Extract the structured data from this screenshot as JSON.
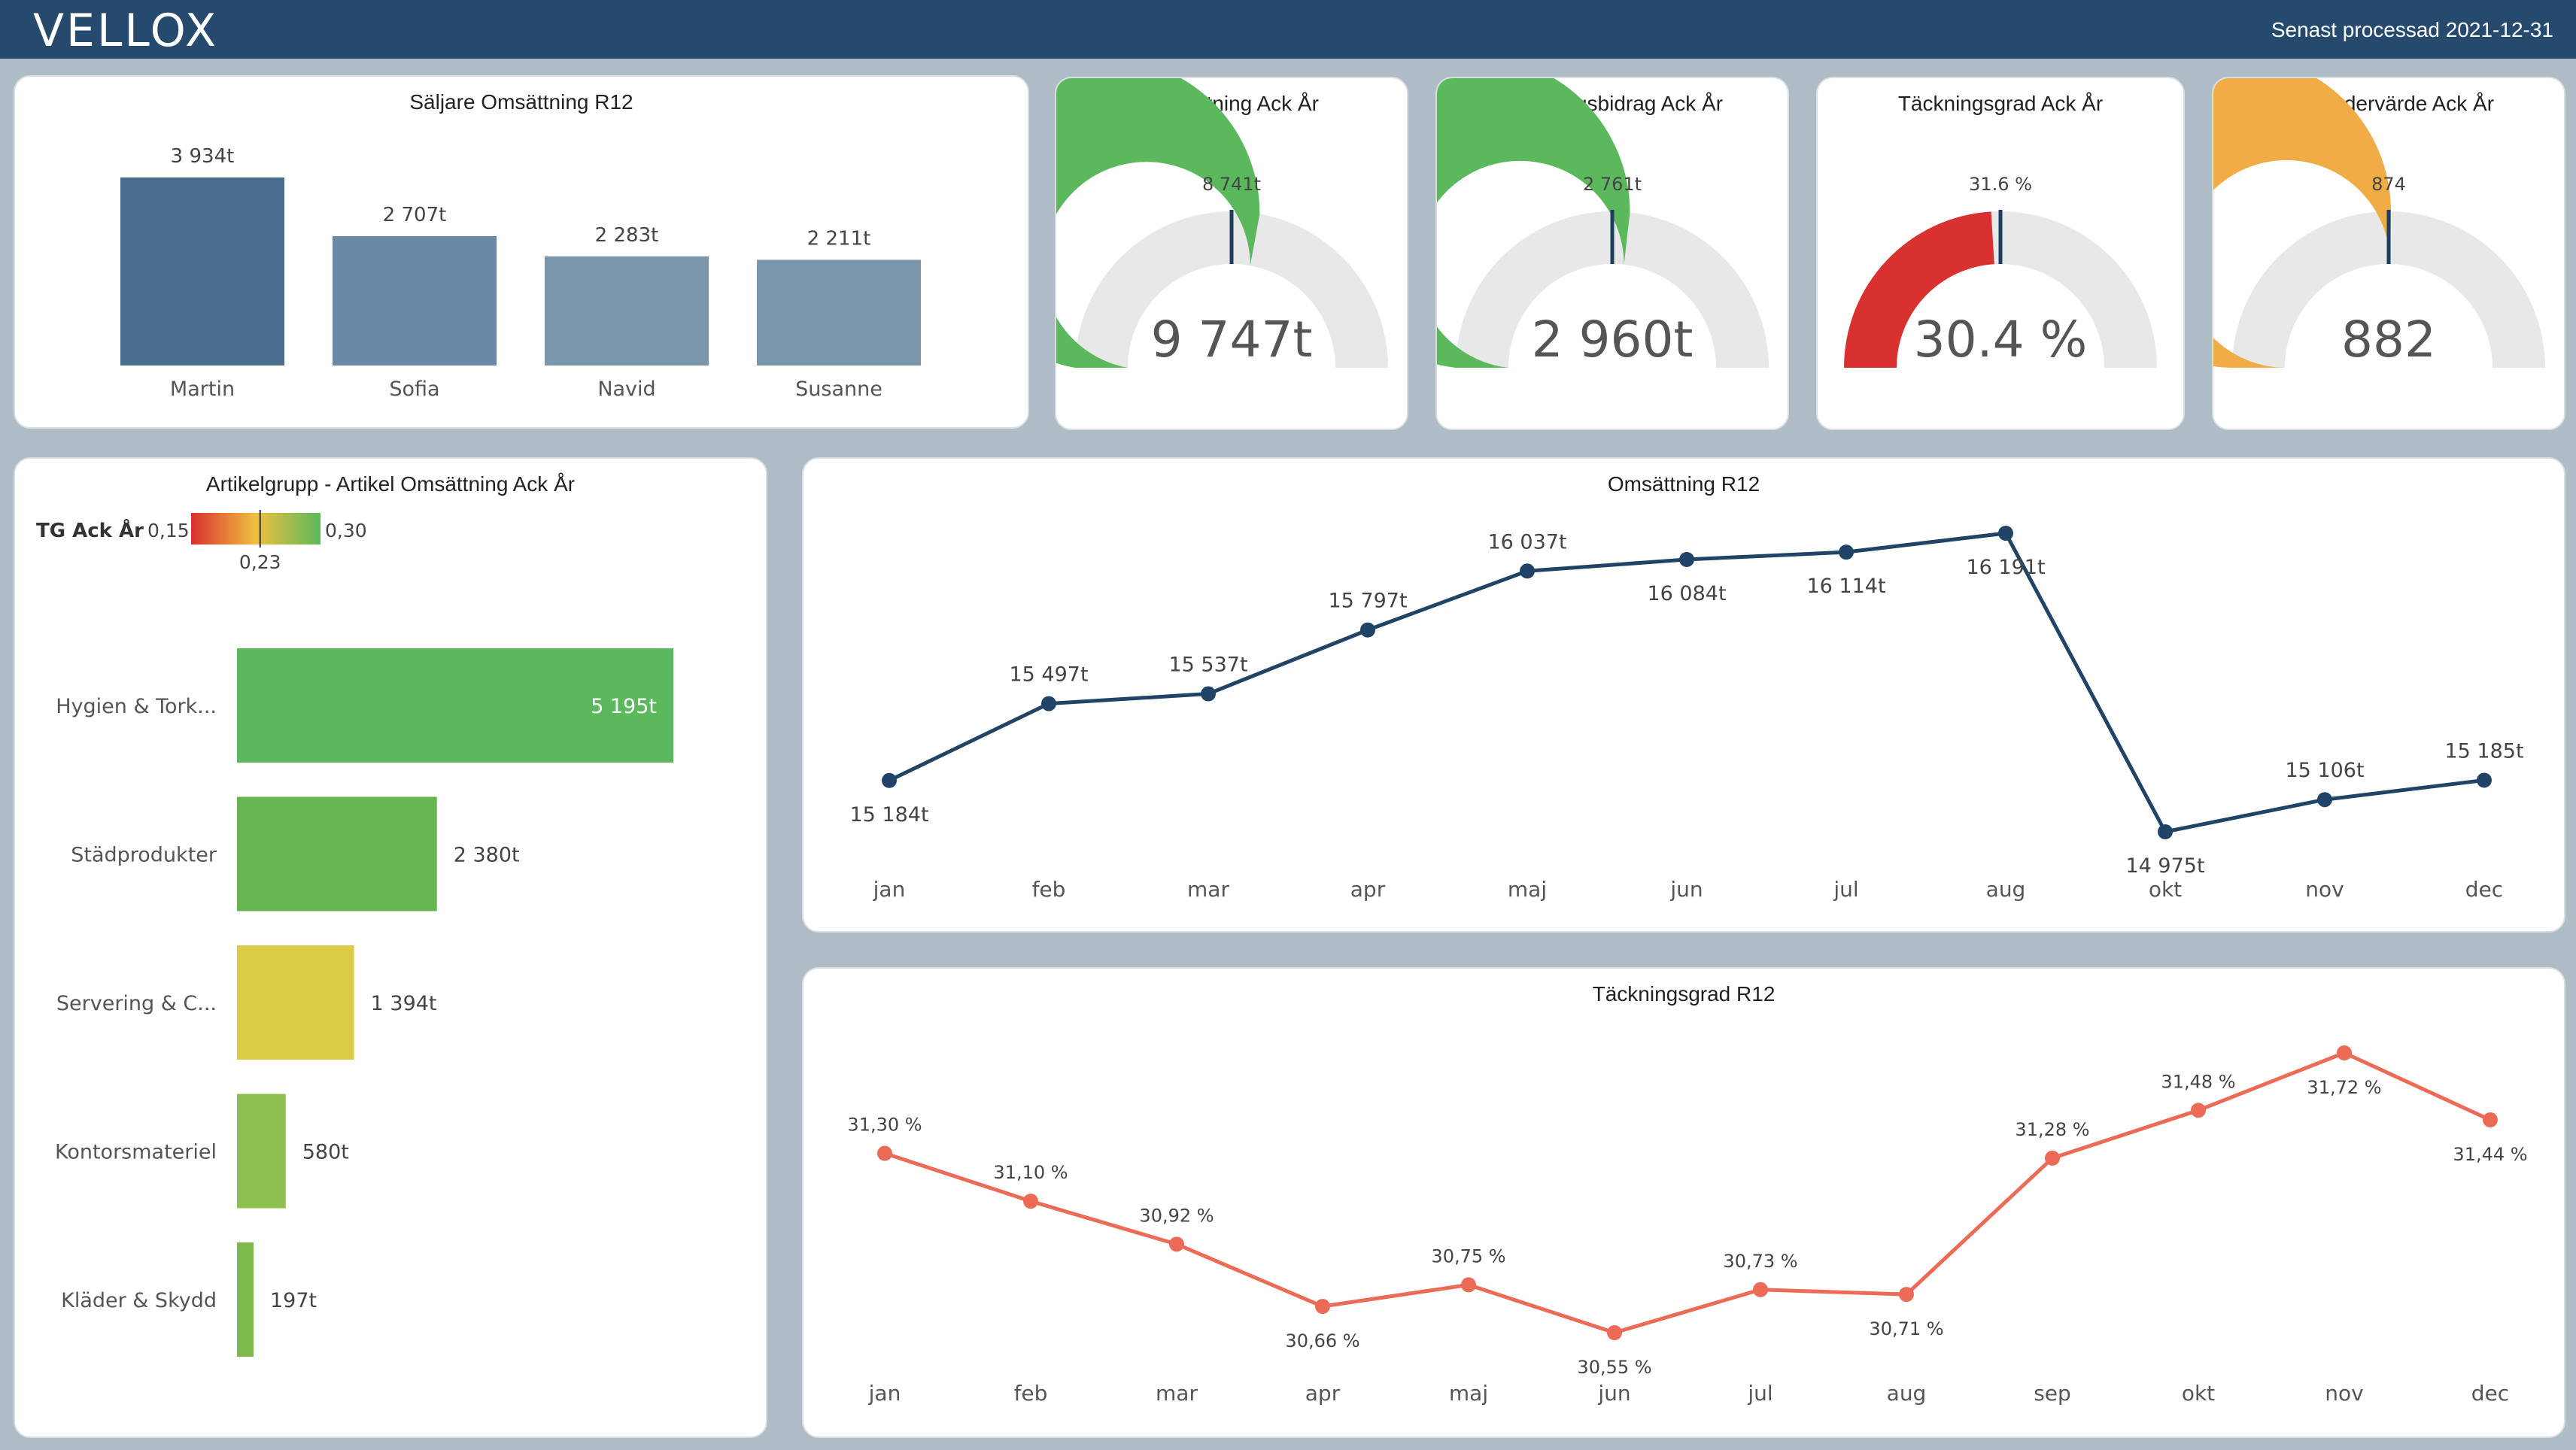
{
  "header": {
    "logo": "VELLOX",
    "processed": "Senast processad 2021-12-31"
  },
  "salesperson": {
    "title": "Säljare  Omsättning R12",
    "chart_data": {
      "type": "bar",
      "categories": [
        "Martin",
        "Sofia",
        "Navid",
        "Susanne"
      ],
      "values": [
        3934,
        2707,
        2283,
        2211
      ],
      "value_labels": [
        "3 934t",
        "2 707t",
        "2 283t",
        "2 211t"
      ],
      "colors": [
        "#4a6f8e",
        "#6a89a6",
        "#7b96ab",
        "#7b96ab"
      ]
    }
  },
  "gauges": [
    {
      "title": "Omsättning Ack År",
      "value_label": "9 747t",
      "target_label": "8 741t",
      "value": 9747,
      "target": 8741,
      "max": 17482,
      "color": "#5cb85c"
    },
    {
      "title": "Täckningsbidrag Ack År",
      "value_label": "2 960t",
      "target_label": "2 761t",
      "value": 2960,
      "target": 2761,
      "max": 5522,
      "color": "#5cb85c"
    },
    {
      "title": "Täckningsgrad Ack År",
      "value_label": "30.4 %",
      "target_label": "31.6 %",
      "value": 30.4,
      "target": 31.6,
      "max": 63.2,
      "color": "#d93030"
    },
    {
      "title": "Snittordervärde Ack År",
      "value_label": "882",
      "target_label": "874",
      "value": 882,
      "target": 874,
      "max": 1748,
      "color": "#f0ad45"
    }
  ],
  "article_group": {
    "title": "Artikelgrupp - Artikel Omsättning Ack År",
    "legend": {
      "label": "TG Ack År",
      "min": "0,15",
      "max": "0,30",
      "marker": "0,23",
      "marker_value": 0.23,
      "min_value": 0.15,
      "max_value": 0.3
    },
    "chart_data": {
      "type": "bar",
      "orientation": "horizontal",
      "categories": [
        "Hygien & Tork...",
        "Städprodukter",
        "Servering & C...",
        "Kontorsmateriel",
        "Kläder & Skydd"
      ],
      "values": [
        5195,
        2380,
        1394,
        580,
        197
      ],
      "value_labels": [
        "5 195t",
        "2 380t",
        "1 394t",
        "580t",
        "197t"
      ],
      "colors": [
        "#5cb85c",
        "#66b651",
        "#dccb47",
        "#8fbf4f",
        "#7cba4e"
      ]
    }
  },
  "revenue_r12": {
    "title": "Omsättning R12",
    "chart_data": {
      "type": "line",
      "categories": [
        "jan",
        "feb",
        "mar",
        "apr",
        "maj",
        "jun",
        "jul",
        "aug",
        "okt",
        "nov",
        "dec"
      ],
      "values": [
        15184,
        15497,
        15537,
        15797,
        16037,
        16084,
        16114,
        16191,
        14975,
        15106,
        15185
      ],
      "value_labels": [
        "15 184t",
        "15 497t",
        "15 537t",
        "15 797t",
        "16 037t",
        "16 084t",
        "16 114t",
        "16 191t",
        "14 975t",
        "15 106t",
        "15 185t"
      ],
      "color": "#1f4466"
    }
  },
  "margin_r12": {
    "title": "Täckningsgrad R12",
    "chart_data": {
      "type": "line",
      "categories": [
        "jan",
        "feb",
        "mar",
        "apr",
        "maj",
        "jun",
        "jul",
        "aug",
        "sep",
        "okt",
        "nov",
        "dec"
      ],
      "values": [
        31.3,
        31.1,
        30.92,
        30.66,
        30.75,
        30.55,
        30.73,
        30.71,
        31.28,
        31.48,
        31.72,
        31.44
      ],
      "value_labels": [
        "31,30 %",
        "31,10 %",
        "30,92 %",
        "30,66 %",
        "30,75 %",
        "30,55 %",
        "30,73 %",
        "30,71 %",
        "31,28 %",
        "31,48 %",
        "31,72 %",
        "31,44 %"
      ],
      "color": "#ec6b56"
    }
  }
}
